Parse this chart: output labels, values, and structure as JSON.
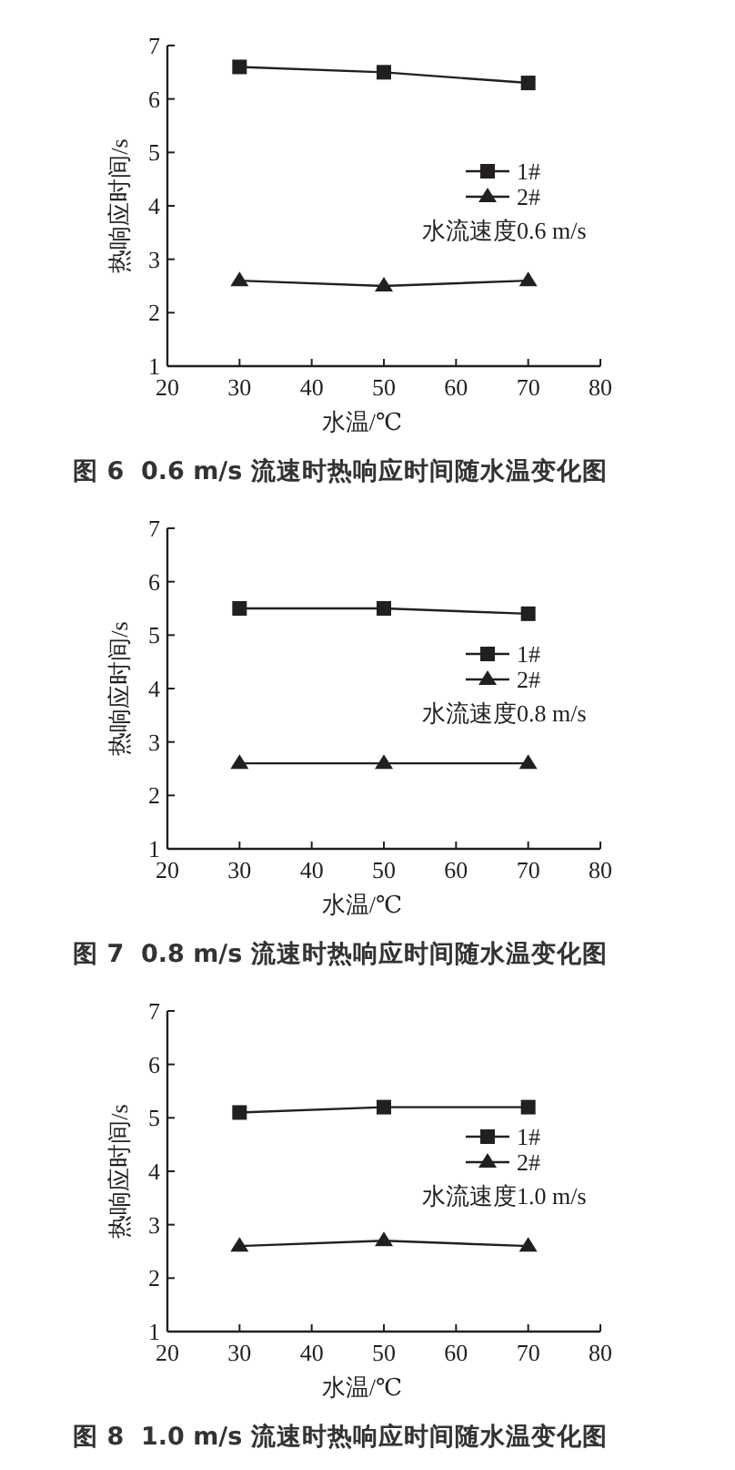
{
  "chart_data": [
    {
      "type": "line",
      "title": "图 6  0.6 m/s 流速时热响应时间随水温变化图",
      "xlabel": "水温/℃",
      "ylabel": "热响应时间/s",
      "annotations": [
        "水流速度0.6 m/s"
      ],
      "x": [
        30,
        50,
        70
      ],
      "xlim": [
        20,
        80
      ],
      "xticks": [
        20,
        30,
        40,
        50,
        60,
        70,
        80
      ],
      "ylim": [
        1,
        7
      ],
      "yticks": [
        1,
        2,
        3,
        4,
        5,
        6,
        7
      ],
      "legend": "right",
      "grid": false,
      "series": [
        {
          "name": "1#",
          "color": "#231f20",
          "marker": "square",
          "values": [
            6.6,
            6.5,
            6.3
          ]
        },
        {
          "name": "2#",
          "color": "#231f20",
          "marker": "triangle",
          "values": [
            2.6,
            2.5,
            2.6
          ]
        }
      ]
    },
    {
      "type": "line",
      "title": "图 7  0.8 m/s 流速时热响应时间随水温变化图",
      "xlabel": "水温/℃",
      "ylabel": "热响应时间/s",
      "annotations": [
        "水流速度0.8 m/s"
      ],
      "x": [
        30,
        50,
        70
      ],
      "xlim": [
        20,
        80
      ],
      "xticks": [
        20,
        30,
        40,
        50,
        60,
        70,
        80
      ],
      "ylim": [
        1,
        7
      ],
      "yticks": [
        1,
        2,
        3,
        4,
        5,
        6,
        7
      ],
      "legend": "right",
      "grid": false,
      "series": [
        {
          "name": "1#",
          "color": "#231f20",
          "marker": "square",
          "values": [
            5.5,
            5.5,
            5.4
          ]
        },
        {
          "name": "2#",
          "color": "#231f20",
          "marker": "triangle",
          "values": [
            2.6,
            2.6,
            2.6
          ]
        }
      ]
    },
    {
      "type": "line",
      "title": "图 8  1.0 m/s 流速时热响应时间随水温变化图",
      "xlabel": "水温/℃",
      "ylabel": "热响应时间/s",
      "annotations": [
        "水流速度1.0 m/s"
      ],
      "x": [
        30,
        50,
        70
      ],
      "xlim": [
        20,
        80
      ],
      "xticks": [
        20,
        30,
        40,
        50,
        60,
        70,
        80
      ],
      "ylim": [
        1,
        7
      ],
      "yticks": [
        1,
        2,
        3,
        4,
        5,
        6,
        7
      ],
      "legend": "right",
      "grid": false,
      "series": [
        {
          "name": "1#",
          "color": "#231f20",
          "marker": "square",
          "values": [
            5.1,
            5.2,
            5.2
          ]
        },
        {
          "name": "2#",
          "color": "#231f20",
          "marker": "triangle",
          "values": [
            2.6,
            2.7,
            2.6
          ]
        }
      ]
    }
  ]
}
